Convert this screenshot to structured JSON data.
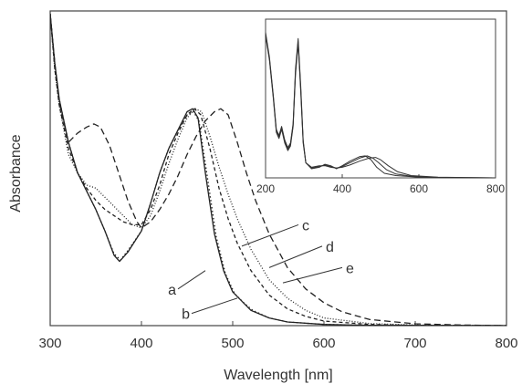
{
  "chart_data": [
    {
      "type": "line",
      "title": "",
      "xlabel": "Wavelength [nm]",
      "ylabel": "Absorbance",
      "xlim": [
        300,
        800
      ],
      "ylim": [
        0,
        1
      ],
      "x_ticks": [
        300,
        400,
        500,
        600,
        700,
        800
      ],
      "grid": false,
      "series": [
        {
          "name": "a",
          "style": "solid",
          "points": [
            [
              300,
              1.02
            ],
            [
              305,
              0.86
            ],
            [
              310,
              0.74
            ],
            [
              320,
              0.6
            ],
            [
              330,
              0.5
            ],
            [
              340,
              0.44
            ],
            [
              350,
              0.38
            ],
            [
              360,
              0.31
            ],
            [
              370,
              0.23
            ],
            [
              376,
              0.21
            ],
            [
              385,
              0.24
            ],
            [
              400,
              0.31
            ],
            [
              410,
              0.4
            ],
            [
              420,
              0.5
            ],
            [
              430,
              0.58
            ],
            [
              440,
              0.64
            ],
            [
              450,
              0.7
            ],
            [
              456,
              0.71
            ],
            [
              462,
              0.68
            ],
            [
              470,
              0.5
            ],
            [
              480,
              0.3
            ],
            [
              490,
              0.18
            ],
            [
              500,
              0.11
            ],
            [
              510,
              0.08
            ],
            [
              520,
              0.05
            ],
            [
              540,
              0.025
            ],
            [
              560,
              0.012
            ],
            [
              600,
              0.004
            ],
            [
              650,
              0.001
            ],
            [
              800,
              0
            ]
          ]
        },
        {
          "name": "b",
          "style": "dotted",
          "points": [
            [
              300,
              1.02
            ],
            [
              305,
              0.86
            ],
            [
              310,
              0.74
            ],
            [
              320,
              0.6
            ],
            [
              330,
              0.5
            ],
            [
              340,
              0.44
            ],
            [
              350,
              0.38
            ],
            [
              360,
              0.31
            ],
            [
              370,
              0.235
            ],
            [
              377,
              0.215
            ],
            [
              385,
              0.245
            ],
            [
              400,
              0.31
            ],
            [
              410,
              0.4
            ],
            [
              420,
              0.5
            ],
            [
              430,
              0.58
            ],
            [
              440,
              0.64
            ],
            [
              450,
              0.69
            ],
            [
              457,
              0.7
            ],
            [
              463,
              0.67
            ],
            [
              472,
              0.49
            ],
            [
              482,
              0.29
            ],
            [
              492,
              0.17
            ],
            [
              502,
              0.105
            ],
            [
              512,
              0.075
            ],
            [
              522,
              0.05
            ],
            [
              540,
              0.025
            ],
            [
              560,
              0.012
            ],
            [
              600,
              0.004
            ],
            [
              650,
              0.001
            ],
            [
              800,
              0
            ]
          ]
        },
        {
          "name": "c",
          "style": "dashed",
          "points": [
            [
              300,
              1.02
            ],
            [
              305,
              0.84
            ],
            [
              310,
              0.72
            ],
            [
              320,
              0.58
            ],
            [
              330,
              0.5
            ],
            [
              340,
              0.45
            ],
            [
              350,
              0.41
            ],
            [
              360,
              0.38
            ],
            [
              370,
              0.36
            ],
            [
              380,
              0.34
            ],
            [
              390,
              0.33
            ],
            [
              400,
              0.33
            ],
            [
              410,
              0.38
            ],
            [
              420,
              0.46
            ],
            [
              430,
              0.56
            ],
            [
              440,
              0.63
            ],
            [
              450,
              0.69
            ],
            [
              458,
              0.71
            ],
            [
              465,
              0.69
            ],
            [
              475,
              0.58
            ],
            [
              485,
              0.45
            ],
            [
              495,
              0.35
            ],
            [
              505,
              0.27
            ],
            [
              520,
              0.18
            ],
            [
              540,
              0.1
            ],
            [
              560,
              0.055
            ],
            [
              580,
              0.03
            ],
            [
              600,
              0.015
            ],
            [
              650,
              0.004
            ],
            [
              700,
              0.001
            ],
            [
              800,
              0
            ]
          ]
        },
        {
          "name": "d",
          "style": "dotted-fine",
          "points": [
            [
              300,
              1.02
            ],
            [
              305,
              0.84
            ],
            [
              310,
              0.72
            ],
            [
              320,
              0.56
            ],
            [
              330,
              0.5
            ],
            [
              340,
              0.46
            ],
            [
              350,
              0.45
            ],
            [
              360,
              0.42
            ],
            [
              370,
              0.39
            ],
            [
              380,
              0.36
            ],
            [
              390,
              0.33
            ],
            [
              400,
              0.32
            ],
            [
              410,
              0.36
            ],
            [
              420,
              0.44
            ],
            [
              430,
              0.53
            ],
            [
              440,
              0.61
            ],
            [
              450,
              0.68
            ],
            [
              459,
              0.71
            ],
            [
              466,
              0.7
            ],
            [
              475,
              0.62
            ],
            [
              485,
              0.52
            ],
            [
              495,
              0.43
            ],
            [
              505,
              0.35
            ],
            [
              520,
              0.25
            ],
            [
              540,
              0.15
            ],
            [
              560,
              0.09
            ],
            [
              580,
              0.05
            ],
            [
              600,
              0.025
            ],
            [
              650,
              0.007
            ],
            [
              700,
              0.002
            ],
            [
              800,
              0
            ]
          ]
        },
        {
          "name": "e",
          "style": "long-dash",
          "points": [
            [
              300,
              1.02
            ],
            [
              305,
              0.86
            ],
            [
              310,
              0.73
            ],
            [
              320,
              0.6
            ],
            [
              330,
              0.63
            ],
            [
              340,
              0.65
            ],
            [
              348,
              0.66
            ],
            [
              355,
              0.65
            ],
            [
              365,
              0.59
            ],
            [
              375,
              0.5
            ],
            [
              385,
              0.41
            ],
            [
              395,
              0.34
            ],
            [
              400,
              0.32
            ],
            [
              410,
              0.34
            ],
            [
              420,
              0.38
            ],
            [
              430,
              0.43
            ],
            [
              440,
              0.49
            ],
            [
              450,
              0.56
            ],
            [
              460,
              0.62
            ],
            [
              470,
              0.67
            ],
            [
              480,
              0.7
            ],
            [
              487,
              0.71
            ],
            [
              495,
              0.69
            ],
            [
              505,
              0.6
            ],
            [
              515,
              0.5
            ],
            [
              525,
              0.41
            ],
            [
              540,
              0.3
            ],
            [
              560,
              0.19
            ],
            [
              580,
              0.12
            ],
            [
              600,
              0.075
            ],
            [
              620,
              0.045
            ],
            [
              650,
              0.02
            ],
            [
              700,
              0.006
            ],
            [
              750,
              0.002
            ],
            [
              800,
              0
            ]
          ]
        }
      ],
      "curve_labels": [
        {
          "text": "a",
          "pointer": [
            470,
            0.18
          ],
          "anchor": [
            440,
            0.12
          ]
        },
        {
          "text": "b",
          "pointer": [
            505,
            0.09
          ],
          "anchor": [
            455,
            0.04
          ]
        },
        {
          "text": "c",
          "pointer": [
            510,
            0.26
          ],
          "anchor": [
            572,
            0.33
          ]
        },
        {
          "text": "d",
          "pointer": [
            540,
            0.19
          ],
          "anchor": [
            598,
            0.26
          ]
        },
        {
          "text": "e",
          "pointer": [
            555,
            0.14
          ],
          "anchor": [
            620,
            0.19
          ]
        }
      ]
    },
    {
      "type": "line",
      "title": "",
      "xlabel": "",
      "ylabel": "",
      "xlim": [
        200,
        800
      ],
      "ylim": [
        0,
        1
      ],
      "x_ticks": [
        200,
        400,
        600,
        800
      ],
      "grid": false,
      "series": [
        {
          "style": "solid",
          "points": [
            [
              200,
              0.96
            ],
            [
              210,
              0.8
            ],
            [
              220,
              0.55
            ],
            [
              228,
              0.32
            ],
            [
              235,
              0.28
            ],
            [
              242,
              0.34
            ],
            [
              250,
              0.25
            ],
            [
              258,
              0.2
            ],
            [
              265,
              0.23
            ],
            [
              272,
              0.36
            ],
            [
              278,
              0.72
            ],
            [
              285,
              0.92
            ],
            [
              292,
              0.6
            ],
            [
              298,
              0.25
            ],
            [
              305,
              0.1
            ],
            [
              320,
              0.06
            ],
            [
              340,
              0.07
            ],
            [
              355,
              0.09
            ],
            [
              370,
              0.08
            ],
            [
              385,
              0.06
            ],
            [
              400,
              0.08
            ],
            [
              420,
              0.11
            ],
            [
              445,
              0.14
            ],
            [
              460,
              0.145
            ],
            [
              475,
              0.12
            ],
            [
              490,
              0.07
            ],
            [
              510,
              0.03
            ],
            [
              540,
              0.015
            ],
            [
              600,
              0.005
            ],
            [
              700,
              0.001
            ],
            [
              800,
              0
            ]
          ]
        },
        {
          "style": "solid",
          "points": [
            [
              200,
              0.95
            ],
            [
              210,
              0.79
            ],
            [
              220,
              0.54
            ],
            [
              228,
              0.31
            ],
            [
              235,
              0.27
            ],
            [
              242,
              0.33
            ],
            [
              250,
              0.24
            ],
            [
              258,
              0.19
            ],
            [
              265,
              0.22
            ],
            [
              272,
              0.35
            ],
            [
              278,
              0.7
            ],
            [
              285,
              0.9
            ],
            [
              292,
              0.58
            ],
            [
              298,
              0.24
            ],
            [
              305,
              0.1
            ],
            [
              320,
              0.065
            ],
            [
              340,
              0.075
            ],
            [
              355,
              0.085
            ],
            [
              370,
              0.075
            ],
            [
              385,
              0.065
            ],
            [
              400,
              0.075
            ],
            [
              420,
              0.1
            ],
            [
              445,
              0.13
            ],
            [
              465,
              0.145
            ],
            [
              480,
              0.13
            ],
            [
              495,
              0.1
            ],
            [
              515,
              0.055
            ],
            [
              540,
              0.025
            ],
            [
              580,
              0.01
            ],
            [
              650,
              0.003
            ],
            [
              800,
              0
            ]
          ]
        },
        {
          "style": "solid",
          "points": [
            [
              200,
              0.94
            ],
            [
              210,
              0.78
            ],
            [
              220,
              0.53
            ],
            [
              228,
              0.3
            ],
            [
              235,
              0.26
            ],
            [
              242,
              0.32
            ],
            [
              250,
              0.23
            ],
            [
              258,
              0.18
            ],
            [
              265,
              0.21
            ],
            [
              272,
              0.34
            ],
            [
              278,
              0.68
            ],
            [
              285,
              0.89
            ],
            [
              292,
              0.56
            ],
            [
              298,
              0.23
            ],
            [
              305,
              0.1
            ],
            [
              320,
              0.07
            ],
            [
              340,
              0.08
            ],
            [
              355,
              0.08
            ],
            [
              370,
              0.07
            ],
            [
              385,
              0.065
            ],
            [
              400,
              0.07
            ],
            [
              420,
              0.085
            ],
            [
              445,
              0.11
            ],
            [
              470,
              0.13
            ],
            [
              487,
              0.135
            ],
            [
              500,
              0.12
            ],
            [
              520,
              0.08
            ],
            [
              545,
              0.04
            ],
            [
              580,
              0.015
            ],
            [
              650,
              0.004
            ],
            [
              800,
              0
            ]
          ]
        }
      ]
    }
  ]
}
